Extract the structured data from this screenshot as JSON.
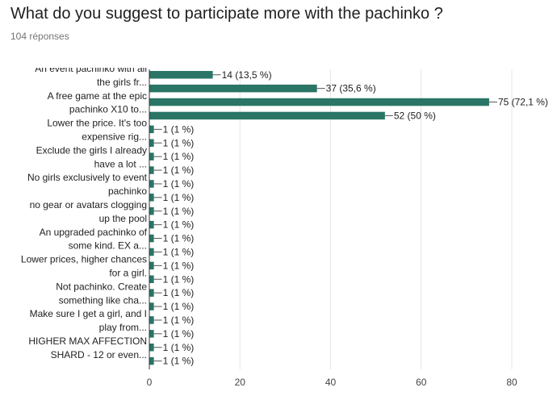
{
  "header": {
    "question": "What do you suggest to participate more with the pachinko ?",
    "response_count": "104 réponses"
  },
  "colors": {
    "bar": "#2a7566",
    "grid": "#e6e6e6",
    "axis": "#333333"
  },
  "chart_data": {
    "type": "bar",
    "orientation": "horizontal",
    "title": "What do you suggest to participate more with the pachinko ?",
    "xlim": [
      0,
      80
    ],
    "x_ticks": [
      0,
      20,
      40,
      60,
      80
    ],
    "category_labels": [
      "An event pachinko with all",
      "the girls fr...",
      "A free game at the epic",
      "pachinko X10 to...",
      "Lower the price. It's too",
      "expensive rig...",
      "Exclude the girls I already",
      "have a lot ...",
      "No girls exclusively to event",
      "pachinko",
      "no gear or avatars clogging",
      "up the pool",
      "An upgraded pachinko of",
      "some kind. EX a...",
      "Lower prices, higher chances",
      "for a girl.",
      "Not pachinko. Create",
      "something like cha...",
      "Make sure I get a girl, and I",
      "play from...",
      "HIGHER MAX AFFECTION",
      "SHARD - 12 or even..."
    ],
    "values": [
      14,
      37,
      75,
      52,
      1,
      1,
      1,
      1,
      1,
      1,
      1,
      1,
      1,
      1,
      1,
      1,
      1,
      1,
      1,
      1,
      1,
      1
    ],
    "value_labels": [
      "14 (13,5 %)",
      "37 (35,6 %)",
      "75 (72,1 %)",
      "52 (50 %)",
      "1 (1 %)",
      "1 (1 %)",
      "1 (1 %)",
      "1 (1 %)",
      "1 (1 %)",
      "1 (1 %)",
      "1 (1 %)",
      "1 (1 %)",
      "1 (1 %)",
      "1 (1 %)",
      "1 (1 %)",
      "1 (1 %)",
      "1 (1 %)",
      "1 (1 %)",
      "1 (1 %)",
      "1 (1 %)",
      "1 (1 %)",
      "1 (1 %)"
    ]
  }
}
